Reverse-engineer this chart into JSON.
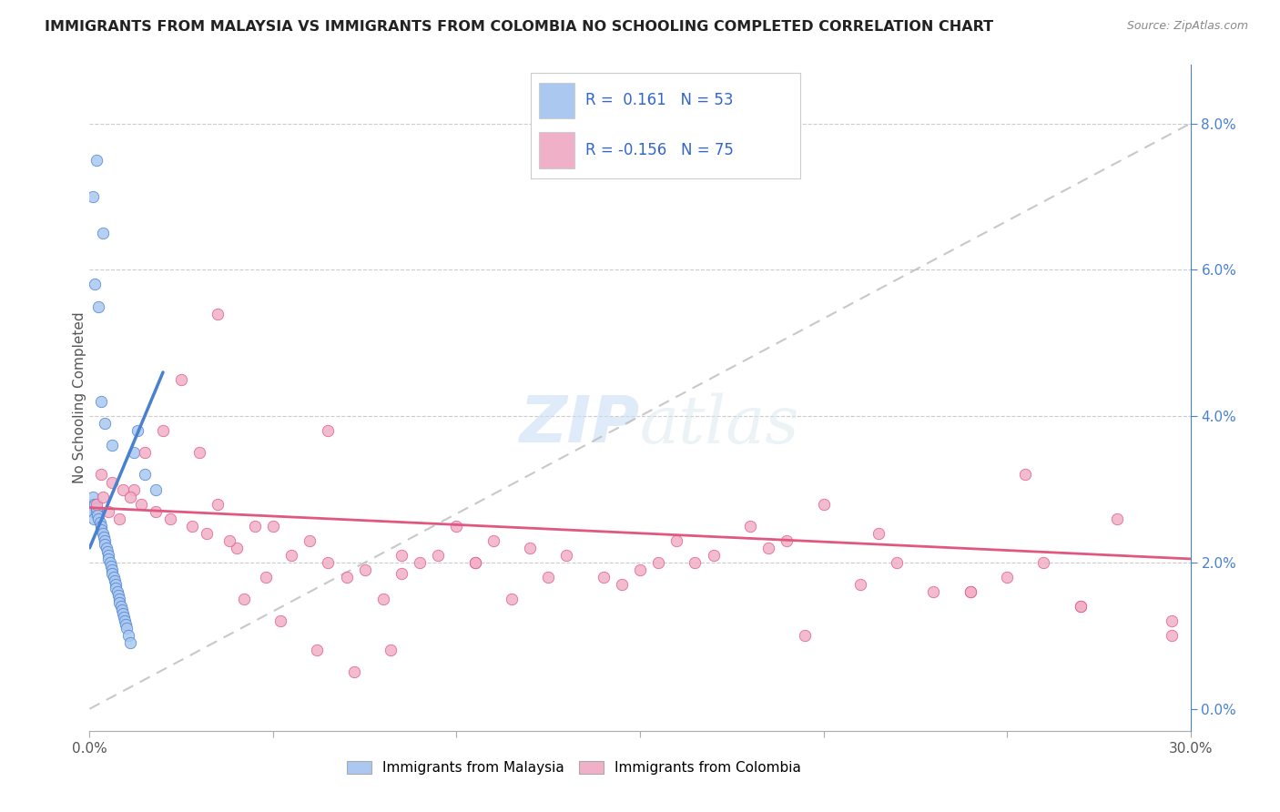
{
  "title": "IMMIGRANTS FROM MALAYSIA VS IMMIGRANTS FROM COLOMBIA NO SCHOOLING COMPLETED CORRELATION CHART",
  "source": "Source: ZipAtlas.com",
  "ylabel": "No Schooling Completed",
  "xlim": [
    0.0,
    30.0
  ],
  "ylim": [
    -0.3,
    8.8
  ],
  "ylim_display": [
    0.0,
    8.0
  ],
  "malaysia_color": "#aac8f0",
  "malaysia_line_color": "#4a80d0",
  "colombia_color": "#f0b0c8",
  "colombia_line_color": "#e05880",
  "diagonal_color": "#bbbbbb",
  "legend_malaysia_R": "0.161",
  "legend_malaysia_N": "53",
  "legend_colombia_R": "-0.156",
  "legend_colombia_N": "75",
  "watermark_zip": "ZIP",
  "watermark_atlas": "atlas",
  "malaysia_scatter_x": [
    0.05,
    0.08,
    0.1,
    0.12,
    0.15,
    0.18,
    0.2,
    0.22,
    0.25,
    0.28,
    0.3,
    0.32,
    0.35,
    0.38,
    0.4,
    0.42,
    0.45,
    0.48,
    0.5,
    0.52,
    0.55,
    0.58,
    0.6,
    0.62,
    0.65,
    0.68,
    0.7,
    0.72,
    0.75,
    0.78,
    0.8,
    0.82,
    0.85,
    0.88,
    0.9,
    0.92,
    0.95,
    0.98,
    1.0,
    1.05,
    1.1,
    1.2,
    1.3,
    1.5,
    1.8,
    0.15,
    0.25,
    0.35,
    0.1,
    0.2,
    0.3,
    0.4,
    0.6
  ],
  "malaysia_scatter_y": [
    2.8,
    2.7,
    2.9,
    2.6,
    2.8,
    2.7,
    2.75,
    2.65,
    2.6,
    2.55,
    2.5,
    2.45,
    2.4,
    2.35,
    2.3,
    2.25,
    2.2,
    2.15,
    2.1,
    2.05,
    2.0,
    1.95,
    1.9,
    1.85,
    1.8,
    1.75,
    1.7,
    1.65,
    1.6,
    1.55,
    1.5,
    1.45,
    1.4,
    1.35,
    1.3,
    1.25,
    1.2,
    1.15,
    1.1,
    1.0,
    0.9,
    3.5,
    3.8,
    3.2,
    3.0,
    5.8,
    5.5,
    6.5,
    7.0,
    7.5,
    4.2,
    3.9,
    3.6
  ],
  "colombia_scatter_x": [
    0.2,
    0.35,
    0.5,
    0.8,
    1.2,
    1.5,
    2.0,
    2.5,
    3.0,
    3.5,
    4.0,
    4.5,
    5.0,
    5.5,
    6.0,
    6.5,
    7.0,
    7.5,
    8.0,
    8.5,
    9.0,
    9.5,
    10.0,
    10.5,
    11.0,
    12.0,
    13.0,
    14.0,
    15.0,
    16.0,
    17.0,
    18.0,
    19.0,
    20.0,
    21.0,
    22.0,
    23.0,
    24.0,
    25.0,
    26.0,
    27.0,
    28.0,
    29.5,
    0.3,
    0.6,
    0.9,
    1.1,
    1.4,
    1.8,
    2.2,
    2.8,
    3.2,
    3.8,
    4.2,
    5.2,
    6.2,
    7.2,
    8.2,
    11.5,
    14.5,
    16.5,
    18.5,
    4.8,
    10.5,
    12.5,
    21.5,
    24.0,
    27.0,
    29.5,
    19.5,
    6.5,
    3.5,
    8.5,
    25.5,
    15.5
  ],
  "colombia_scatter_y": [
    2.8,
    2.9,
    2.7,
    2.6,
    3.0,
    3.5,
    3.8,
    4.5,
    3.5,
    2.8,
    2.2,
    2.5,
    2.5,
    2.1,
    2.3,
    2.0,
    1.8,
    1.9,
    1.5,
    1.85,
    2.0,
    2.1,
    2.5,
    2.0,
    2.3,
    2.2,
    2.1,
    1.8,
    1.9,
    2.3,
    2.1,
    2.5,
    2.3,
    2.8,
    1.7,
    2.0,
    1.6,
    1.6,
    1.8,
    2.0,
    1.4,
    2.6,
    1.2,
    3.2,
    3.1,
    3.0,
    2.9,
    2.8,
    2.7,
    2.6,
    2.5,
    2.4,
    2.3,
    1.5,
    1.2,
    0.8,
    0.5,
    0.8,
    1.5,
    1.7,
    2.0,
    2.2,
    1.8,
    2.0,
    1.8,
    2.4,
    1.6,
    1.4,
    1.0,
    1.0,
    3.8,
    5.4,
    2.1,
    3.2,
    2.0
  ],
  "malaysia_line_x": [
    0.0,
    2.0
  ],
  "malaysia_line_y": [
    2.2,
    4.6
  ],
  "colombia_line_x": [
    0.0,
    30.0
  ],
  "colombia_line_y": [
    2.75,
    2.05
  ]
}
